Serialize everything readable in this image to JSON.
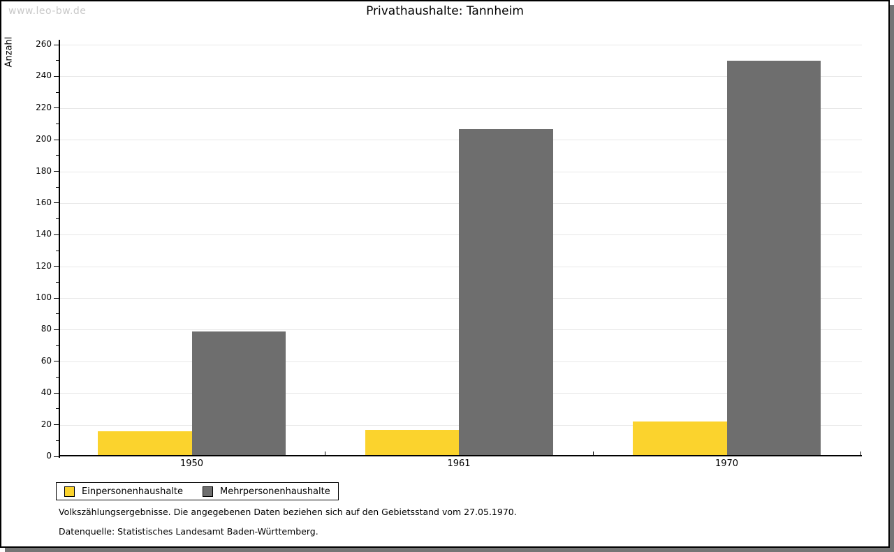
{
  "watermark": "www.leo-bw.de",
  "chart_data": {
    "type": "bar",
    "title": "Privathaushalte: Tannheim",
    "xlabel": "",
    "ylabel": "Anzahl",
    "categories": [
      "1950",
      "1961",
      "1970"
    ],
    "series": [
      {
        "name": "Einpersonenhaushalte",
        "color": "#FBD32D",
        "values": [
          15,
          16,
          21
        ]
      },
      {
        "name": "Mehrpersonenhaushalte",
        "color": "#6E6E6E",
        "values": [
          78,
          206,
          249
        ]
      }
    ],
    "ylim": [
      0,
      260
    ],
    "ytick_step": 20,
    "yminor_step": 10,
    "grid": true,
    "legend_position": "bottom-left",
    "grid_color": "#e7e7e7"
  },
  "footnotes": [
    "Volkszählungsergebnisse. Die angegebenen Daten beziehen sich auf den Gebietsstand vom 27.05.1970.",
    "Datenquelle: Statistisches Landesamt Baden-Württemberg."
  ]
}
